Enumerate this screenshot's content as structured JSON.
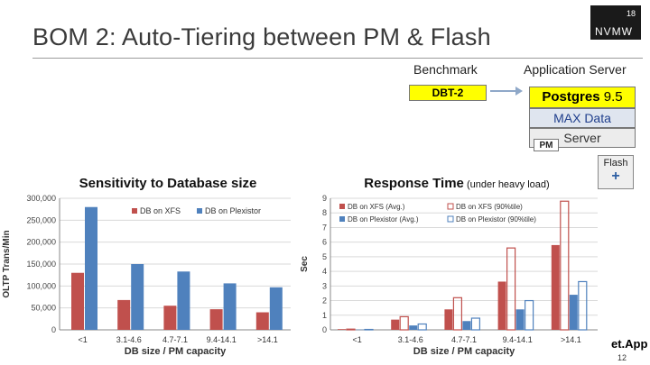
{
  "slide": {
    "title": "BOM 2:   Auto-Tiering between PM & Flash",
    "logo_number": "18",
    "logo_text": "NVMW",
    "page_number": "12",
    "footer_text": "et.App"
  },
  "diagram": {
    "benchmark_label": "Benchmark",
    "app_server_label": "Application Server",
    "benchmark_box": "DBT-2",
    "postgres_box_bold": "Postgres",
    "postgres_box_version": "9.5",
    "max_data_box": "MAX Data",
    "server_box": "Server",
    "pm_label": "PM",
    "flash_label": "Flash",
    "flash_symbol": "+"
  },
  "colors": {
    "red": "#c0504d",
    "blue": "#4f81bd",
    "highlight": "#ffff00"
  },
  "chart_data": [
    {
      "type": "bar",
      "title": "Sensitivity to Database size",
      "xlabel": "DB size / PM capacity",
      "ylabel": "OLTP Trans/Min",
      "ylim": [
        0,
        300000
      ],
      "yticks": [
        "0",
        "50,000",
        "100,000",
        "150,000",
        "200,000",
        "250,000",
        "300,000"
      ],
      "categories": [
        "<1",
        "3.1-4.6",
        "4.7-7.1",
        "9.4-14.1",
        ">14.1"
      ],
      "series": [
        {
          "name": "DB on XFS",
          "color": "#c0504d",
          "values": [
            130000,
            68000,
            55000,
            47000,
            40000
          ]
        },
        {
          "name": "DB on Plexistor",
          "color": "#4f81bd",
          "values": [
            280000,
            150000,
            133000,
            106000,
            97000
          ]
        }
      ],
      "grid": true,
      "legend": "top"
    },
    {
      "type": "bar",
      "title": "Response Time",
      "title_suffix": "(under heavy load)",
      "xlabel": "DB size / PM capacity",
      "ylabel": "Sec",
      "ylim": [
        0,
        9
      ],
      "yticks": [
        "0",
        "1",
        "2",
        "3",
        "4",
        "5",
        "6",
        "7",
        "8",
        "9"
      ],
      "categories": [
        "<1",
        "3.1-4.6",
        "4.7-7.1",
        "9.4-14.1",
        ">14.1"
      ],
      "series": [
        {
          "name": "DB on XFS (Avg.)",
          "color": "#c0504d",
          "style": "filled",
          "values": [
            0.05,
            0.7,
            1.4,
            3.3,
            5.8
          ]
        },
        {
          "name": "DB on XFS (90%tile)",
          "color": "#c0504d",
          "style": "outline",
          "values": [
            0.05,
            0.9,
            2.2,
            5.6,
            8.8
          ]
        },
        {
          "name": "DB on Plexistor (Avg.)",
          "color": "#4f81bd",
          "style": "filled",
          "values": [
            0.02,
            0.3,
            0.6,
            1.4,
            2.4
          ]
        },
        {
          "name": "DB on Plexistor (90%tile)",
          "color": "#4f81bd",
          "style": "outline",
          "values": [
            0.03,
            0.4,
            0.8,
            2.0,
            3.3
          ]
        }
      ],
      "grid": true,
      "legend": "top"
    }
  ]
}
